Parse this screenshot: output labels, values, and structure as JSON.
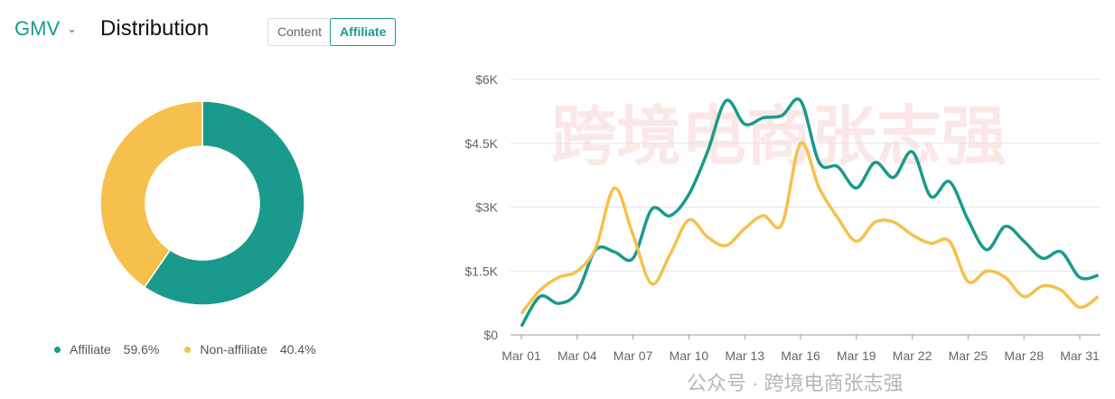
{
  "header": {
    "metric": "GMV",
    "title": "Distribution",
    "tabs": [
      "Content",
      "Affiliate"
    ],
    "active_tab": "Affiliate"
  },
  "colors": {
    "affiliate": "#1a9a8c",
    "non_affiliate": "#f6c04c"
  },
  "watermark": {
    "main": "跨境电商张志强",
    "footer": "公众号 · 跨境电商张志强"
  },
  "chart_data": [
    {
      "type": "pie",
      "donut": true,
      "labels": [
        "Affiliate",
        "Non-affiliate"
      ],
      "values": [
        59.6,
        40.4
      ],
      "value_labels": [
        "59.6%",
        "40.4%"
      ],
      "legend": "bottom"
    },
    {
      "type": "line",
      "title": "",
      "xlabel": "",
      "ylabel": "GMV",
      "ylim": [
        0,
        6000
      ],
      "yticks": [
        0,
        1500,
        3000,
        4500,
        6000
      ],
      "ytick_labels": [
        "$0",
        "$1.5K",
        "$3K",
        "$4.5K",
        "$6K"
      ],
      "xtick_labels": [
        "Mar 01",
        "Mar 04",
        "Mar 07",
        "Mar 10",
        "Mar 13",
        "Mar 16",
        "Mar 19",
        "Mar 22",
        "Mar 25",
        "Mar 28",
        "Mar 31"
      ],
      "x": [
        "Mar 01",
        "Mar 02",
        "Mar 03",
        "Mar 04",
        "Mar 05",
        "Mar 06",
        "Mar 07",
        "Mar 08",
        "Mar 09",
        "Mar 10",
        "Mar 11",
        "Mar 12",
        "Mar 13",
        "Mar 14",
        "Mar 15",
        "Mar 16",
        "Mar 17",
        "Mar 18",
        "Mar 19",
        "Mar 20",
        "Mar 21",
        "Mar 22",
        "Mar 23",
        "Mar 24",
        "Mar 25",
        "Mar 26",
        "Mar 27",
        "Mar 28",
        "Mar 29",
        "Mar 30",
        "Mar 31",
        "Apr 01"
      ],
      "grid": true,
      "series": [
        {
          "name": "Affiliate",
          "values": [
            200,
            900,
            740,
            1000,
            2000,
            1950,
            1800,
            2950,
            2800,
            3300,
            4300,
            5500,
            4950,
            5100,
            5150,
            5500,
            4050,
            3950,
            3450,
            4050,
            3700,
            4300,
            3250,
            3600,
            2700,
            2000,
            2550,
            2200,
            1800,
            1950,
            1350,
            1400
          ]
        },
        {
          "name": "Non-affiliate",
          "values": [
            500,
            1050,
            1350,
            1500,
            2050,
            3450,
            2350,
            1200,
            1900,
            2700,
            2300,
            2100,
            2500,
            2800,
            2600,
            4500,
            3450,
            2750,
            2200,
            2650,
            2650,
            2350,
            2150,
            2200,
            1250,
            1500,
            1350,
            900,
            1150,
            1050,
            650,
            900
          ]
        }
      ]
    }
  ]
}
